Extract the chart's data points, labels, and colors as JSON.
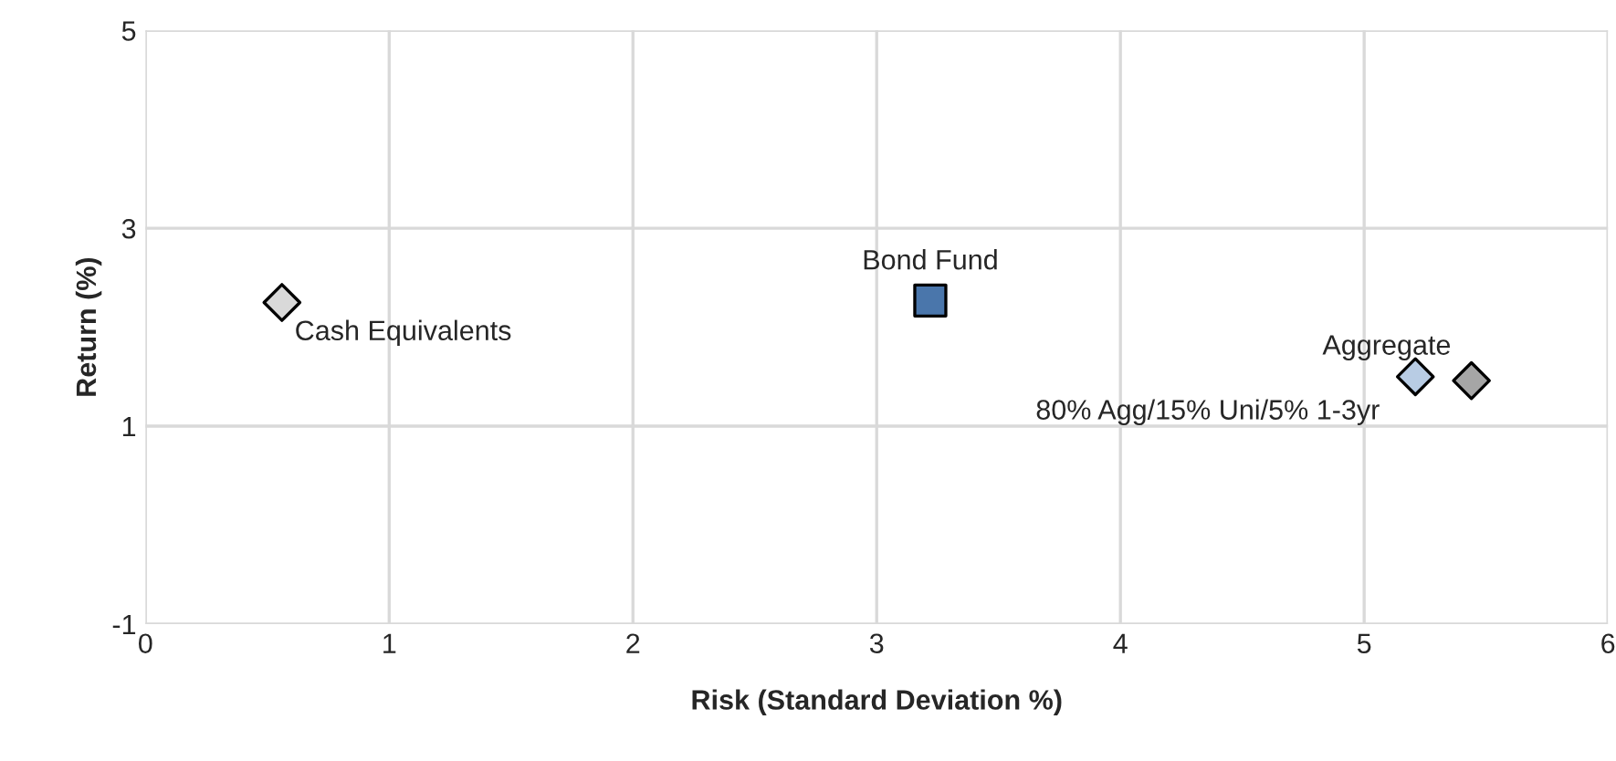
{
  "chart_data": {
    "type": "scatter",
    "xlabel": "Risk (Standard Deviation %)",
    "ylabel": "Return (%)",
    "xlim": [
      0,
      6
    ],
    "xticks": [
      0,
      1,
      2,
      3,
      4,
      5,
      6
    ],
    "ylim": [
      -1,
      5
    ],
    "yticks": [
      -1,
      1,
      3,
      5
    ],
    "grid": true,
    "series": [
      {
        "name": "Cash Equivalents",
        "color": "#d9d9d9",
        "marker": "diamond",
        "x": [
          0.56
        ],
        "values": [
          2.25
        ]
      },
      {
        "name": "Bond Fund",
        "color": "#4a76ab",
        "marker": "square",
        "x": [
          3.22
        ],
        "values": [
          2.27
        ]
      },
      {
        "name": "80% Agg/15% Uni/5% 1-3yr",
        "color": "#b8cce4",
        "marker": "diamond",
        "x": [
          5.21
        ],
        "values": [
          1.5
        ]
      },
      {
        "name": "Aggregate",
        "color": "#a6a6a6",
        "marker": "diamond",
        "x": [
          5.44
        ],
        "values": [
          1.46
        ]
      }
    ]
  }
}
